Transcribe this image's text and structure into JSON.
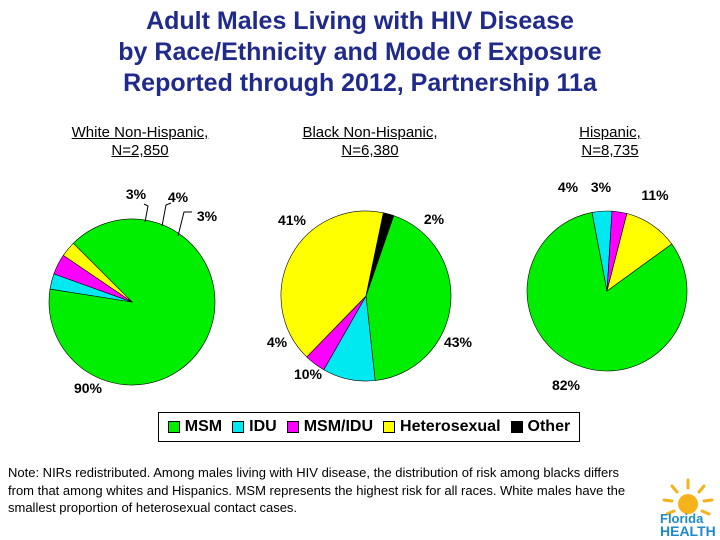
{
  "title": {
    "line1": "Adult Males Living with HIV Disease",
    "line2": "by Race/Ethnicity and Mode of Exposure",
    "line3": "Reported through 2012, Partnership 11a"
  },
  "colors": {
    "MSM": "#00ee00",
    "IDU": "#00e8f0",
    "MSM/IDU": "#ff00ff",
    "Heterosexual": "#ffff00",
    "Other": "#000000",
    "title": "#1f2a8a"
  },
  "chart_data": [
    {
      "type": "pie",
      "group": "White Non-Hispanic,",
      "n_label": "N=2,850",
      "categories": [
        "MSM",
        "IDU",
        "MSM/IDU",
        "Heterosexual"
      ],
      "values": [
        90,
        3,
        4,
        3
      ],
      "labels": [
        "90%",
        "3%",
        "4%",
        "3%"
      ]
    },
    {
      "type": "pie",
      "group": "Black Non-Hispanic,",
      "n_label": "N=6,380",
      "categories": [
        "MSM",
        "IDU",
        "MSM/IDU",
        "Heterosexual",
        "Other"
      ],
      "values": [
        43,
        10,
        4,
        41,
        2
      ],
      "labels": [
        "43%",
        "10%",
        "4%",
        "41%",
        "2%"
      ]
    },
    {
      "type": "pie",
      "group": "Hispanic,",
      "n_label": "N=8,735",
      "categories": [
        "MSM",
        "IDU",
        "MSM/IDU",
        "Heterosexual"
      ],
      "values": [
        82,
        4,
        3,
        11
      ],
      "labels": [
        "82%",
        "4%",
        "3%",
        "11%"
      ]
    }
  ],
  "legend": [
    "MSM",
    "IDU",
    "MSM/IDU",
    "Heterosexual",
    "Other"
  ],
  "note": "Note: NIRs redistributed.  Among males living with HIV disease, the distribution of risk among blacks differs from that among whites and Hispanics.  MSM represents the highest risk for all races.  White males have the smallest proportion of heterosexual contact cases.",
  "logo": {
    "line1": "Florida",
    "line2": "HEALTH"
  }
}
